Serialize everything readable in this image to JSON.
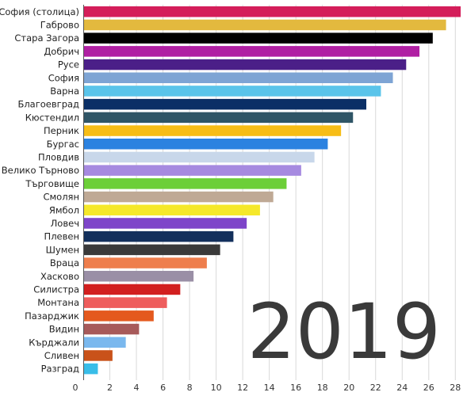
{
  "chart_data": {
    "type": "bar",
    "orientation": "horizontal",
    "categories": [
      "София (столица)",
      "Габрово",
      "Стара Загора",
      "Добрич",
      "Русе",
      "София",
      "Варна",
      "Благоевград",
      "Кюстендил",
      "Перник",
      "Бургас",
      "Пловдив",
      "Велико Търново",
      "Търговище",
      "Смолян",
      "Ямбол",
      "Ловеч",
      "Плевен",
      "Шумен",
      "Враца",
      "Хасково",
      "Силистра",
      "Монтана",
      "Пазарджик",
      "Видин",
      "Кърджали",
      "Сливен",
      "Разград"
    ],
    "values": [
      28.4,
      27.3,
      26.3,
      25.3,
      24.3,
      23.3,
      22.4,
      21.3,
      20.3,
      19.4,
      18.4,
      17.4,
      16.4,
      15.3,
      14.3,
      13.3,
      12.3,
      11.3,
      10.3,
      9.3,
      8.3,
      7.3,
      6.3,
      5.3,
      4.2,
      3.2,
      2.2,
      1.1
    ],
    "colors": [
      "#d41e5a",
      "#e3b93e",
      "#000000",
      "#b01fa3",
      "#4b1f88",
      "#7ea4d4",
      "#5ac4ea",
      "#0b2f66",
      "#2f5566",
      "#f7bd16",
      "#2b82e0",
      "#c8d7ea",
      "#a68ae0",
      "#6ccf38",
      "#bfa995",
      "#f5e82a",
      "#7e45c9",
      "#13305c",
      "#3a3a3a",
      "#ee7e4d",
      "#9a8fa6",
      "#d21f1f",
      "#ee5d5d",
      "#e4591e",
      "#a75a5a",
      "#7ab8ee",
      "#c9521a",
      "#39bde8"
    ],
    "x_ticks": [
      "0",
      "2",
      "4",
      "6",
      "8",
      "10",
      "12",
      "14",
      "16",
      "18",
      "20",
      "22",
      "24",
      "26",
      "28"
    ],
    "xlim": [
      0,
      28.4
    ],
    "grid": true,
    "year": "2019"
  }
}
